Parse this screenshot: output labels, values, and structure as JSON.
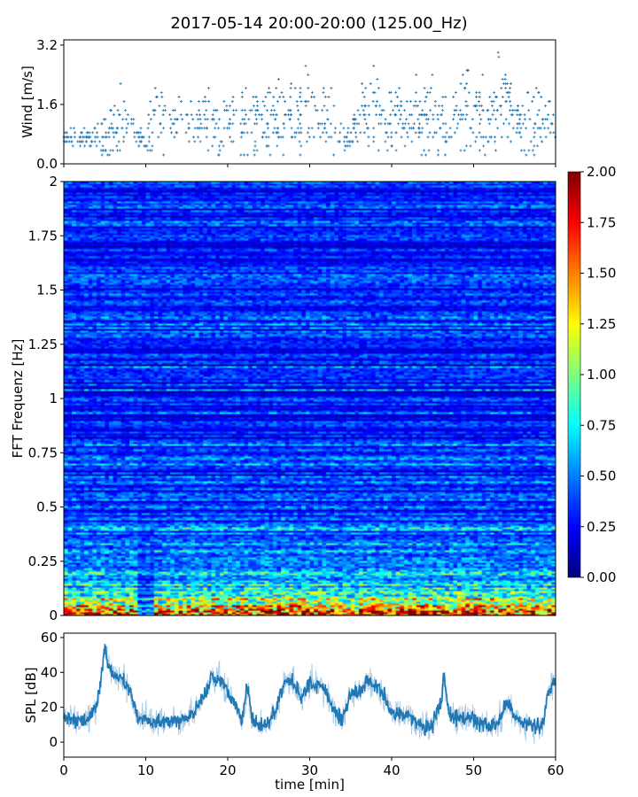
{
  "title": "2017-05-14 20:00-20:00 (125.00_Hz)",
  "chart_data": [
    {
      "type": "scatter",
      "name": "wind",
      "ylabel": "Wind [m/s]",
      "ylim": [
        0,
        3.34
      ],
      "xlim": [
        0,
        60
      ],
      "yticks": [
        "0.0",
        "1.6",
        "3.2"
      ],
      "ytick_values": [
        0,
        1.6,
        3.2
      ],
      "marker": "+",
      "color": "#1f77b4",
      "x_minutes": [
        0,
        1,
        2,
        3,
        4,
        5,
        6,
        7,
        8,
        9,
        10,
        11,
        12,
        13,
        14,
        15,
        16,
        17,
        18,
        19,
        20,
        21,
        22,
        23,
        24,
        25,
        26,
        27,
        28,
        29,
        30,
        31,
        32,
        33,
        34,
        35,
        36,
        37,
        38,
        39,
        40,
        41,
        42,
        43,
        44,
        45,
        46,
        47,
        48,
        49,
        50,
        51,
        52,
        53,
        54,
        55,
        56,
        57,
        58,
        59,
        60
      ],
      "mean_wind": [
        0.7,
        0.7,
        0.7,
        0.7,
        0.7,
        0.8,
        1.0,
        1.1,
        1.0,
        0.7,
        0.7,
        1.1,
        1.2,
        1.1,
        1.0,
        1.0,
        1.0,
        1.1,
        1.2,
        1.0,
        1.0,
        1.1,
        1.1,
        1.1,
        1.2,
        1.1,
        1.2,
        1.3,
        1.2,
        1.4,
        1.4,
        1.3,
        1.2,
        1.0,
        0.7,
        0.6,
        1.3,
        1.4,
        1.4,
        1.3,
        1.2,
        1.2,
        1.1,
        1.2,
        1.3,
        1.3,
        1.0,
        1.0,
        1.3,
        1.4,
        1.4,
        1.3,
        1.0,
        1.5,
        1.6,
        1.2,
        1.1,
        1.2,
        1.1,
        1.2,
        1.3
      ],
      "spread": [
        0.1,
        0.1,
        0.1,
        0.1,
        0.15,
        0.35,
        0.45,
        0.4,
        0.35,
        0.1,
        0.15,
        0.5,
        0.45,
        0.4,
        0.4,
        0.35,
        0.4,
        0.45,
        0.5,
        0.4,
        0.35,
        0.4,
        0.45,
        0.45,
        0.45,
        0.4,
        0.45,
        0.5,
        0.45,
        0.55,
        0.55,
        0.45,
        0.45,
        0.35,
        0.15,
        0.15,
        0.45,
        0.55,
        0.5,
        0.45,
        0.45,
        0.45,
        0.4,
        0.45,
        0.5,
        0.5,
        0.35,
        0.4,
        0.5,
        0.55,
        0.55,
        0.5,
        0.45,
        0.6,
        0.6,
        0.5,
        0.4,
        0.45,
        0.45,
        0.45,
        0.45
      ]
    },
    {
      "type": "heatmap",
      "name": "spectrogram",
      "ylabel": "FFT Frequenz [Hz]",
      "ylim": [
        0,
        2
      ],
      "xlim": [
        0,
        60
      ],
      "yticks": [
        "0",
        "0.25",
        "0.5",
        "0.75",
        "1",
        "1.25",
        "1.5",
        "1.75",
        "2"
      ],
      "ytick_values": [
        0,
        0.25,
        0.5,
        0.75,
        1,
        1.25,
        1.5,
        1.75,
        2
      ],
      "colormap": "jet",
      "clim": [
        0,
        2
      ],
      "colorbar_ticks": [
        "0.00",
        "0.25",
        "0.50",
        "0.75",
        "1.00",
        "1.25",
        "1.50",
        "1.75",
        "2.00"
      ],
      "colorbar_tick_values": [
        0,
        0.25,
        0.5,
        0.75,
        1,
        1.25,
        1.5,
        1.75,
        2
      ],
      "background_level": 0.3,
      "low_freq_level_by_minute": [
        1.6,
        1.6,
        1.5,
        1.6,
        1.7,
        1.7,
        1.6,
        1.6,
        1.7,
        0.4,
        0.5,
        1.4,
        1.5,
        1.4,
        1.5,
        1.5,
        1.6,
        1.7,
        1.8,
        1.7,
        1.6,
        1.7,
        1.7,
        1.7,
        1.7,
        1.7,
        1.8,
        1.8,
        1.7,
        1.8,
        1.8,
        1.7,
        1.7,
        1.6,
        1.3,
        1.2,
        1.7,
        1.8,
        1.8,
        1.7,
        1.7,
        1.7,
        1.6,
        1.7,
        1.7,
        1.7,
        1.6,
        1.7,
        1.8,
        1.8,
        1.8,
        1.7,
        1.6,
        1.8,
        1.8,
        1.7,
        1.6,
        1.7,
        1.7,
        1.7,
        1.7
      ]
    },
    {
      "type": "line",
      "name": "spl",
      "xlabel": "time [min]",
      "ylabel": "SPL [dB]",
      "xlim": [
        0,
        60
      ],
      "ylim": [
        -8.6,
        62.5
      ],
      "xticks": [
        "0",
        "10",
        "20",
        "30",
        "40",
        "50",
        "60"
      ],
      "xtick_values": [
        0,
        10,
        20,
        30,
        40,
        50,
        60
      ],
      "yticks": [
        "0",
        "20",
        "40",
        "60"
      ],
      "ytick_values": [
        0,
        20,
        40,
        60
      ],
      "color": "#1f77b4",
      "x": [
        0,
        1,
        2,
        3,
        4,
        4.5,
        5,
        5.5,
        6,
        7,
        8,
        9,
        10,
        11,
        12,
        13,
        14,
        15,
        16,
        17,
        18,
        19,
        20,
        21,
        21.7,
        22.4,
        23,
        24,
        25,
        26,
        27,
        28,
        29,
        30,
        31,
        32,
        33,
        34,
        35,
        36,
        37,
        38,
        39,
        40,
        41,
        42,
        43,
        44,
        45,
        45.5,
        46,
        46.4,
        47,
        48,
        49,
        50,
        51,
        52,
        53,
        53.7,
        54,
        55,
        56,
        57,
        58,
        58.5,
        59,
        60
      ],
      "y": [
        13,
        13,
        13,
        13,
        20,
        35,
        55,
        44,
        38,
        37,
        30,
        14,
        13,
        12,
        12,
        12,
        12,
        15,
        19,
        25,
        35,
        37,
        29,
        21,
        11,
        33,
        12,
        10,
        11,
        20,
        36,
        34,
        25,
        34,
        33,
        29,
        18,
        12,
        28,
        28,
        34,
        33,
        27,
        17,
        16,
        15,
        11,
        9,
        10,
        18,
        22,
        38,
        15,
        14,
        14,
        13,
        11,
        10,
        11,
        18,
        24,
        16,
        10,
        9,
        9,
        10,
        28,
        36
      ]
    }
  ]
}
